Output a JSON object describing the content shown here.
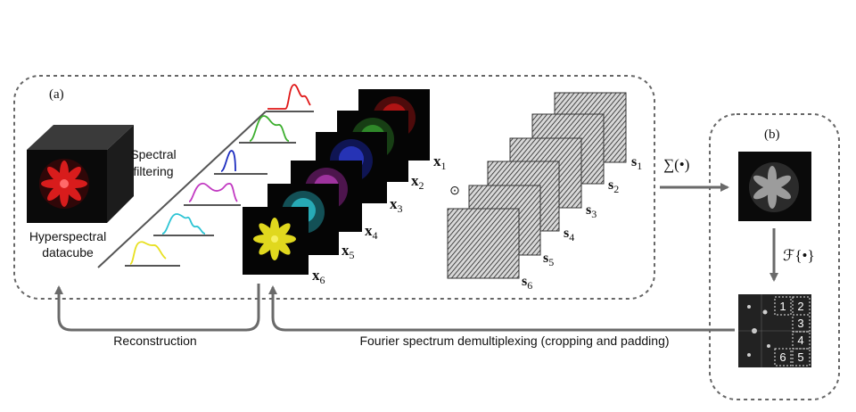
{
  "panel_a": {
    "label": "(a)"
  },
  "panel_b": {
    "label": "(b)"
  },
  "datacube": {
    "label_line1": "Hyperspectral",
    "label_line2": "datacube"
  },
  "filtering": {
    "label_line1": "Spectral",
    "label_line2": "filtering"
  },
  "channels": [
    {
      "letter": "x",
      "index": "1",
      "color": "#d81818"
    },
    {
      "letter": "x",
      "index": "2",
      "color": "#3aa832"
    },
    {
      "letter": "x",
      "index": "3",
      "color": "#1e2ec8"
    },
    {
      "letter": "x",
      "index": "4",
      "color": "#b82cb8"
    },
    {
      "letter": "x",
      "index": "5",
      "color": "#28c0d0"
    },
    {
      "letter": "x",
      "index": "6",
      "color": "#e0d81e"
    }
  ],
  "patterns": [
    {
      "letter": "s",
      "index": "1"
    },
    {
      "letter": "s",
      "index": "2"
    },
    {
      "letter": "s",
      "index": "3"
    },
    {
      "letter": "s",
      "index": "4"
    },
    {
      "letter": "s",
      "index": "5"
    },
    {
      "letter": "s",
      "index": "6"
    }
  ],
  "hadamard_symbol": "⊙",
  "sum_label": "∑(•)",
  "fourier_label": "ℱ{•}",
  "spectrum_regions": [
    "1",
    "2",
    "3",
    "4",
    "6",
    "5"
  ],
  "reconstruction_label": "Reconstruction",
  "demux_label": "Fourier spectrum demultiplexing (cropping and padding)"
}
